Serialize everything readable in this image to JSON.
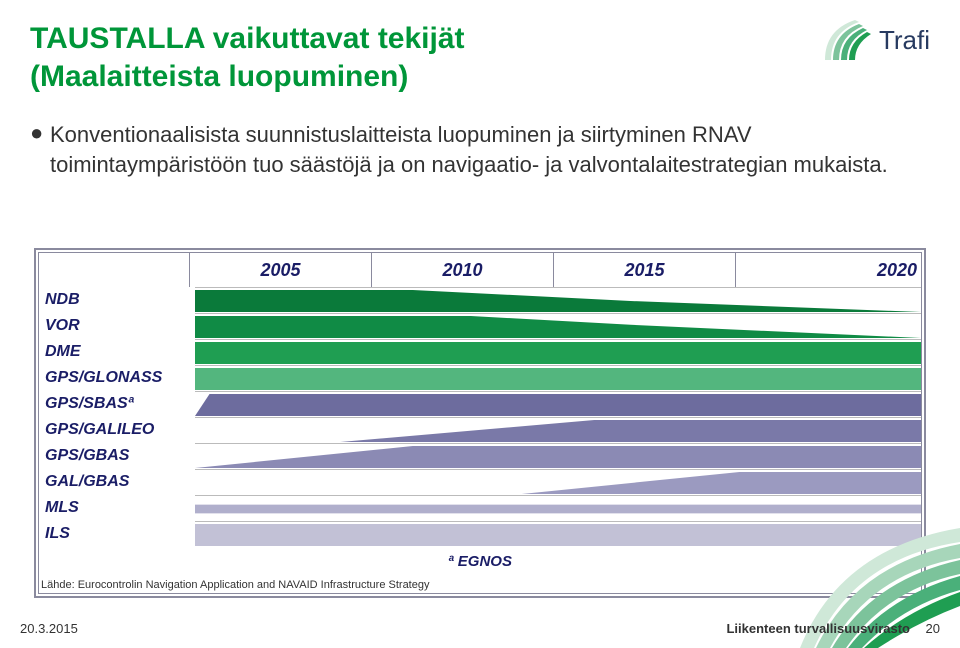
{
  "brand": {
    "name": "Trafi",
    "logo_color": "#009639",
    "text_color": "#273a60"
  },
  "title": {
    "line1": "TAUSTALLA vaikuttavat tekijät",
    "line2": "(Maalaitteista luopuminen)",
    "color": "#009639",
    "fontsize": 30
  },
  "bullet": {
    "dot": "●",
    "text": "Konventionaalisista suunnistuslaitteista luopuminen ja siirtyminen RNAV toimintaympäristöön tuo säästöjä ja on navigaatio- ja valvontalaitestrategian mukaista.",
    "fontsize": 22
  },
  "chart": {
    "type": "timeline-band",
    "years": [
      "2005",
      "2010",
      "2015",
      "2020"
    ],
    "year_color": "#1a1d66",
    "year_fontsize": 18,
    "row_fontsize": 16,
    "row_color": "#1a1d66",
    "border_color": "#8a8a9e",
    "rows": [
      {
        "label": "NDB",
        "poly": [
          [
            0,
            0
          ],
          [
            30,
            0
          ],
          [
            60,
            50
          ],
          [
            100,
            100
          ],
          [
            0,
            100
          ]
        ],
        "fill": "#0a7a3a"
      },
      {
        "label": "VOR",
        "poly": [
          [
            0,
            0
          ],
          [
            38,
            0
          ],
          [
            60,
            40
          ],
          [
            100,
            100
          ],
          [
            0,
            100
          ]
        ],
        "fill": "#108b45"
      },
      {
        "label": "DME",
        "poly": [
          [
            0,
            0
          ],
          [
            100,
            0
          ],
          [
            100,
            100
          ],
          [
            0,
            100
          ]
        ],
        "fill": "#1f9e52"
      },
      {
        "label": "GPS/GLONASS",
        "poly": [
          [
            0,
            0
          ],
          [
            100,
            0
          ],
          [
            100,
            100
          ],
          [
            0,
            100
          ]
        ],
        "fill": "#53b67e"
      },
      {
        "label": "GPS/SBASª",
        "poly": [
          [
            0,
            100
          ],
          [
            2,
            0
          ],
          [
            100,
            0
          ],
          [
            100,
            100
          ]
        ],
        "fill": "#6d6c9e"
      },
      {
        "label": "GPS/GALILEO",
        "poly": [
          [
            20,
            100
          ],
          [
            55,
            0
          ],
          [
            100,
            0
          ],
          [
            100,
            100
          ]
        ],
        "fill": "#7a79a8"
      },
      {
        "label": "GPS/GBAS",
        "poly": [
          [
            0,
            100
          ],
          [
            30,
            0
          ],
          [
            100,
            0
          ],
          [
            100,
            100
          ]
        ],
        "fill": "#8b8ab4"
      },
      {
        "label": "GAL/GBAS",
        "poly": [
          [
            45,
            100
          ],
          [
            75,
            0
          ],
          [
            100,
            0
          ],
          [
            100,
            100
          ]
        ],
        "fill": "#9b9ac0"
      },
      {
        "label": "MLS",
        "poly": [
          [
            0,
            30
          ],
          [
            100,
            30
          ],
          [
            100,
            70
          ],
          [
            0,
            70
          ]
        ],
        "fill": "#b0afcc"
      },
      {
        "label": "ILS",
        "poly": [
          [
            0,
            0
          ],
          [
            100,
            0
          ],
          [
            100,
            100
          ],
          [
            0,
            100
          ]
        ],
        "fill": "#c2c1d6"
      }
    ],
    "egnos": "ª EGNOS",
    "source": "Lähde: Eurocontrolin Navigation Application and NAVAID Infrastructure Strategy"
  },
  "footer": {
    "date": "20.3.2015",
    "org": "Liikenteen turvallisuusvirasto",
    "page": "20"
  },
  "corner_arcs": [
    "#cfe8d8",
    "#a7d6ba",
    "#7cc39b",
    "#4ab07a",
    "#1f9e52"
  ]
}
